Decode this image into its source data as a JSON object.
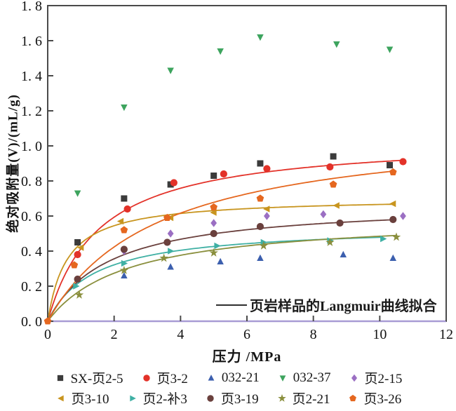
{
  "figure": {
    "background": "#ffffff",
    "frame_color": "#4a4a4a"
  },
  "chart_data": {
    "type": "scatter",
    "title": "",
    "xlabel": "压力 /MPa",
    "ylabel": "绝对吸附量(V)/(mL/g)",
    "xlim": [
      0,
      12
    ],
    "ylim": [
      0,
      1.8
    ],
    "x_ticks": [
      0,
      2,
      4,
      6,
      8,
      10,
      12
    ],
    "x_tick_labels": [
      "0",
      "2",
      "4",
      "6",
      "8",
      "10",
      "12"
    ],
    "y_ticks": [
      0,
      0.2,
      0.4,
      0.6,
      0.8,
      1.0,
      1.2,
      1.4,
      1.6,
      1.8
    ],
    "y_tick_labels": [
      "0. 0",
      "0. 2",
      "0. 4",
      "0. 6",
      "0. 8",
      "1. 0",
      "1. 2",
      "1. 4",
      "1. 6",
      "1. 8"
    ],
    "grid": false,
    "legend_position": "bottom",
    "fit_note": "页岩样品的Langmuir曲线拟合",
    "series": [
      {
        "name": "SX-页2-5",
        "marker": "square",
        "color": "#3b3b3b",
        "points": [
          [
            0.9,
            0.45
          ],
          [
            2.3,
            0.7
          ],
          [
            3.7,
            0.78
          ],
          [
            5.0,
            0.83
          ],
          [
            6.4,
            0.9
          ],
          [
            8.6,
            0.94
          ],
          [
            10.3,
            0.89
          ]
        ],
        "fit": null
      },
      {
        "name": "页3-2",
        "marker": "circle",
        "color": "#e33229",
        "points": [
          [
            0.9,
            0.38
          ],
          [
            2.4,
            0.64
          ],
          [
            3.8,
            0.79
          ],
          [
            5.3,
            0.84
          ],
          [
            6.6,
            0.87
          ],
          [
            8.5,
            0.88
          ],
          [
            10.7,
            0.91
          ]
        ],
        "fit": {
          "type": "langmuir",
          "vm": 1.05,
          "b": 0.65,
          "p_end": 10.74
        }
      },
      {
        "name": "032-21",
        "marker": "triangle-up",
        "color": "#3c5fae",
        "points": [
          [
            2.3,
            0.26
          ],
          [
            3.7,
            0.31
          ],
          [
            5.2,
            0.34
          ],
          [
            6.4,
            0.36
          ],
          [
            8.9,
            0.38
          ],
          [
            10.4,
            0.36
          ]
        ],
        "fit": null
      },
      {
        "name": "032-37",
        "marker": "triangle-down",
        "color": "#3da45e",
        "points": [
          [
            0.9,
            0.73
          ],
          [
            2.3,
            1.22
          ],
          [
            3.7,
            1.43
          ],
          [
            5.2,
            1.54
          ],
          [
            6.4,
            1.62
          ],
          [
            8.7,
            1.58
          ],
          [
            10.3,
            1.55
          ]
        ],
        "fit": null
      },
      {
        "name": "页2-15",
        "marker": "diamond",
        "color": "#9b6fc3",
        "points": [
          [
            2.3,
            0.4
          ],
          [
            3.7,
            0.5
          ],
          [
            5.0,
            0.56
          ],
          [
            6.6,
            0.6
          ],
          [
            8.3,
            0.61
          ],
          [
            10.7,
            0.6
          ]
        ],
        "fit": {
          "type": "flat_zero",
          "p_end": 12,
          "color": "#a89bd4"
        }
      },
      {
        "name": "页3-10",
        "marker": "triangle-left",
        "color": "#c8951f",
        "points": [
          [
            1.0,
            0.42
          ],
          [
            2.2,
            0.57
          ],
          [
            3.7,
            0.59
          ],
          [
            5.0,
            0.62
          ],
          [
            6.6,
            0.64
          ],
          [
            8.7,
            0.66
          ],
          [
            10.4,
            0.67
          ]
        ],
        "fit": {
          "type": "langmuir",
          "vm": 0.705,
          "b": 1.7,
          "p_end": 10.45
        }
      },
      {
        "name": "页2-补3",
        "marker": "triangle-right",
        "color": "#3fb0a4",
        "points": [
          [
            0.85,
            0.2
          ],
          [
            2.3,
            0.33
          ],
          [
            3.7,
            0.4
          ],
          [
            5.1,
            0.43
          ],
          [
            6.5,
            0.45
          ],
          [
            8.5,
            0.46
          ],
          [
            10.1,
            0.47
          ]
        ],
        "fit": {
          "type": "langmuir",
          "vm": 0.545,
          "b": 0.72,
          "p_end": 10.1
        }
      },
      {
        "name": "页3-19",
        "marker": "circle",
        "color": "#6a403d",
        "points": [
          [
            0.9,
            0.24
          ],
          [
            2.3,
            0.41
          ],
          [
            3.6,
            0.45
          ],
          [
            5.0,
            0.5
          ],
          [
            6.4,
            0.54
          ],
          [
            8.8,
            0.56
          ],
          [
            10.4,
            0.58
          ]
        ],
        "fit": {
          "type": "langmuir",
          "vm": 0.68,
          "b": 0.55,
          "p_end": 10.45
        }
      },
      {
        "name": "页2-21",
        "marker": "star",
        "color": "#8a8f3d",
        "points": [
          [
            0.95,
            0.15
          ],
          [
            2.3,
            0.29
          ],
          [
            3.5,
            0.36
          ],
          [
            5.0,
            0.39
          ],
          [
            6.5,
            0.43
          ],
          [
            8.5,
            0.45
          ],
          [
            10.5,
            0.48
          ]
        ],
        "fit": {
          "type": "langmuir",
          "vm": 0.6,
          "b": 0.42,
          "p_end": 10.5
        }
      },
      {
        "name": "页3-26",
        "marker": "pentagon",
        "color": "#e5671f",
        "points": [
          [
            0,
            0
          ],
          [
            0.8,
            0.32
          ],
          [
            2.3,
            0.52
          ],
          [
            3.6,
            0.59
          ],
          [
            5.0,
            0.65
          ],
          [
            6.4,
            0.7
          ],
          [
            8.6,
            0.78
          ],
          [
            10.4,
            0.85
          ]
        ],
        "fit": {
          "type": "langmuir",
          "vm": 1.13,
          "b": 0.3,
          "p_end": 10.4
        }
      }
    ]
  }
}
